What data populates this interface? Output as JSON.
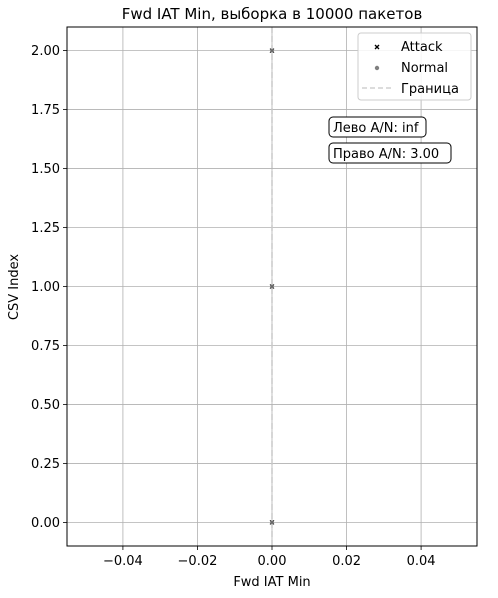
{
  "chart_data": {
    "type": "scatter",
    "title": "Fwd IAT Min, выборка в 10000 пакетов",
    "xlabel": "Fwd IAT Min",
    "ylabel": "CSV Index",
    "xlim": [
      -0.055,
      0.055
    ],
    "ylim": [
      -0.1,
      2.1
    ],
    "xticks": [
      -0.04,
      -0.02,
      0.0,
      0.02,
      0.04
    ],
    "xtick_labels": [
      "−0.04",
      "−0.02",
      "0.00",
      "0.02",
      "0.04"
    ],
    "yticks": [
      0.0,
      0.25,
      0.5,
      0.75,
      1.0,
      1.25,
      1.5,
      1.75,
      2.0
    ],
    "ytick_labels": [
      "0.00",
      "0.25",
      "0.50",
      "0.75",
      "1.00",
      "1.25",
      "1.50",
      "1.75",
      "2.00"
    ],
    "grid": true,
    "legend_position": "top-right",
    "series": [
      {
        "name": "Attack",
        "marker": "x",
        "color": "#000000",
        "points": [
          [
            0.0,
            0.0
          ],
          [
            0.0,
            1.0
          ],
          [
            0.0,
            2.0
          ]
        ]
      },
      {
        "name": "Normal",
        "marker": "o",
        "color": "#808080",
        "points": [
          [
            0.0,
            0.0
          ],
          [
            0.0,
            1.0
          ],
          [
            0.0,
            2.0
          ]
        ]
      }
    ],
    "boundary": {
      "name": "Граница",
      "x": 0.0,
      "color": "#c8c8c8",
      "style": "dashed"
    },
    "annotations": [
      {
        "text": "Лево A/N: inf"
      },
      {
        "text": "Право A/N: 3.00"
      }
    ]
  }
}
